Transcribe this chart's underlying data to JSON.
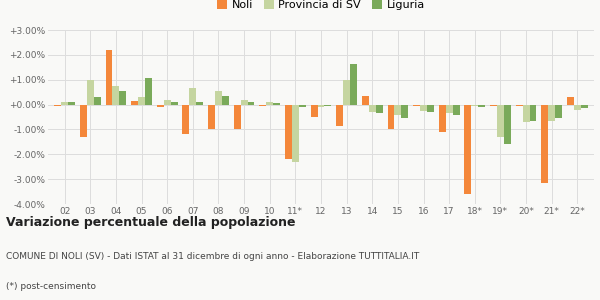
{
  "years": [
    "02",
    "03",
    "04",
    "05",
    "06",
    "07",
    "08",
    "09",
    "10",
    "11*",
    "12",
    "13",
    "14",
    "15",
    "16",
    "17",
    "18*",
    "19*",
    "20*",
    "21*",
    "22*"
  ],
  "noli": [
    -0.05,
    -1.3,
    2.2,
    0.15,
    -0.1,
    -1.2,
    -1.0,
    -1.0,
    -0.05,
    -2.2,
    -0.5,
    -0.85,
    0.35,
    -1.0,
    -0.05,
    -1.1,
    -3.6,
    -0.05,
    -0.05,
    -3.15,
    0.3
  ],
  "provincia_sv": [
    0.1,
    1.0,
    0.75,
    0.3,
    0.2,
    0.65,
    0.55,
    0.2,
    0.1,
    -2.3,
    -0.1,
    1.0,
    -0.3,
    -0.4,
    -0.25,
    -0.35,
    -0.05,
    -1.3,
    -0.7,
    -0.65,
    -0.2
  ],
  "liguria": [
    0.1,
    0.3,
    0.55,
    1.05,
    0.1,
    0.1,
    0.35,
    0.1,
    0.05,
    -0.1,
    -0.05,
    1.65,
    -0.35,
    -0.55,
    -0.3,
    -0.4,
    -0.1,
    -1.6,
    -0.65,
    -0.55,
    -0.15
  ],
  "noli_color": "#f4873a",
  "provincia_sv_color": "#c5d5a0",
  "liguria_color": "#7aaa5a",
  "bg_color": "#f9f9f7",
  "grid_color": "#dddddd",
  "title": "Variazione percentuale della popolazione",
  "subtitle": "COMUNE DI NOLI (SV) - Dati ISTAT al 31 dicembre di ogni anno - Elaborazione TUTTITALIA.IT",
  "footnote": "(*) post-censimento",
  "ylim": [
    -4.0,
    3.0
  ],
  "yticks": [
    -4.0,
    -3.0,
    -2.0,
    -1.0,
    0.0,
    1.0,
    2.0,
    3.0
  ],
  "bar_width": 0.27
}
